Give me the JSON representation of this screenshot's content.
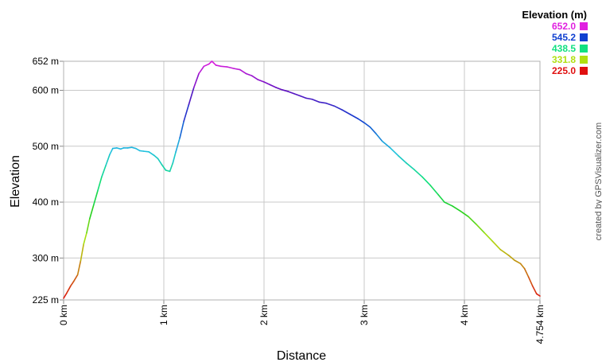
{
  "chart_data": {
    "type": "line",
    "xlabel": "Distance",
    "ylabel": "Elevation",
    "x_unit": "km",
    "y_unit": "m",
    "xlim": [
      0,
      4.754
    ],
    "ylim": [
      225,
      652
    ],
    "grid": true,
    "x_ticks": [
      {
        "value": 0,
        "label": "0 km"
      },
      {
        "value": 1,
        "label": "1 km"
      },
      {
        "value": 2,
        "label": "2 km"
      },
      {
        "value": 3,
        "label": "3 km"
      },
      {
        "value": 4,
        "label": "4 km"
      },
      {
        "value": 4.754,
        "label": "4.754 km"
      }
    ],
    "y_ticks": [
      {
        "value": 225,
        "label": "225 m"
      },
      {
        "value": 300,
        "label": "300 m"
      },
      {
        "value": 400,
        "label": "400 m"
      },
      {
        "value": 500,
        "label": "500 m"
      },
      {
        "value": 600,
        "label": "600 m"
      },
      {
        "value": 652,
        "label": "652 m"
      }
    ],
    "legend": {
      "title": "Elevation (m)",
      "placement": "top-right",
      "entries": [
        {
          "label": "652.0",
          "color": "#e020e0"
        },
        {
          "label": "545.2",
          "color": "#1040d0"
        },
        {
          "label": "438.5",
          "color": "#10e080"
        },
        {
          "label": "331.8",
          "color": "#b0e010"
        },
        {
          "label": "225.0",
          "color": "#e01010"
        }
      ]
    },
    "color_stops": [
      {
        "value": 225.0,
        "color": "#e01010"
      },
      {
        "value": 331.8,
        "color": "#b0e010"
      },
      {
        "value": 385.0,
        "color": "#20d020"
      },
      {
        "value": 438.5,
        "color": "#10e080"
      },
      {
        "value": 492.0,
        "color": "#20c0e0"
      },
      {
        "value": 545.2,
        "color": "#1040d0"
      },
      {
        "value": 600.0,
        "color": "#6010c0"
      },
      {
        "value": 652.0,
        "color": "#e020e0"
      }
    ],
    "series": [
      {
        "points": [
          [
            0,
            228
          ],
          [
            0.03,
            237
          ],
          [
            0.07,
            250
          ],
          [
            0.1,
            258
          ],
          [
            0.14,
            270
          ],
          [
            0.17,
            295
          ],
          [
            0.2,
            325
          ],
          [
            0.23,
            345
          ],
          [
            0.26,
            370
          ],
          [
            0.3,
            395
          ],
          [
            0.34,
            420
          ],
          [
            0.38,
            445
          ],
          [
            0.42,
            465
          ],
          [
            0.46,
            485
          ],
          [
            0.49,
            496
          ],
          [
            0.53,
            497
          ],
          [
            0.57,
            495
          ],
          [
            0.6,
            497
          ],
          [
            0.64,
            497
          ],
          [
            0.68,
            498
          ],
          [
            0.72,
            496
          ],
          [
            0.76,
            492
          ],
          [
            0.8,
            491
          ],
          [
            0.85,
            490
          ],
          [
            0.9,
            484
          ],
          [
            0.94,
            478
          ],
          [
            0.98,
            467
          ],
          [
            1.02,
            457
          ],
          [
            1.06,
            455
          ],
          [
            1.09,
            470
          ],
          [
            1.12,
            490
          ],
          [
            1.16,
            515
          ],
          [
            1.2,
            545
          ],
          [
            1.25,
            575
          ],
          [
            1.3,
            605
          ],
          [
            1.35,
            630
          ],
          [
            1.4,
            643
          ],
          [
            1.45,
            647
          ],
          [
            1.48,
            652
          ],
          [
            1.52,
            645
          ],
          [
            1.57,
            643
          ],
          [
            1.63,
            642
          ],
          [
            1.7,
            639
          ],
          [
            1.76,
            637
          ],
          [
            1.82,
            630
          ],
          [
            1.88,
            626
          ],
          [
            1.94,
            619
          ],
          [
            2.0,
            615
          ],
          [
            2.06,
            610
          ],
          [
            2.12,
            605
          ],
          [
            2.18,
            601
          ],
          [
            2.24,
            598
          ],
          [
            2.3,
            594
          ],
          [
            2.36,
            590
          ],
          [
            2.42,
            586
          ],
          [
            2.48,
            584
          ],
          [
            2.55,
            579
          ],
          [
            2.62,
            577
          ],
          [
            2.7,
            572
          ],
          [
            2.78,
            565
          ],
          [
            2.86,
            557
          ],
          [
            2.94,
            549
          ],
          [
            3.0,
            542
          ],
          [
            3.06,
            534
          ],
          [
            3.12,
            522
          ],
          [
            3.18,
            509
          ],
          [
            3.26,
            497
          ],
          [
            3.34,
            483
          ],
          [
            3.42,
            470
          ],
          [
            3.5,
            458
          ],
          [
            3.58,
            445
          ],
          [
            3.66,
            430
          ],
          [
            3.74,
            413
          ],
          [
            3.8,
            400
          ],
          [
            3.88,
            393
          ],
          [
            3.96,
            384
          ],
          [
            4.04,
            374
          ],
          [
            4.12,
            360
          ],
          [
            4.2,
            345
          ],
          [
            4.28,
            330
          ],
          [
            4.36,
            315
          ],
          [
            4.44,
            305
          ],
          [
            4.5,
            296
          ],
          [
            4.56,
            290
          ],
          [
            4.6,
            281
          ],
          [
            4.64,
            266
          ],
          [
            4.68,
            250
          ],
          [
            4.72,
            236
          ],
          [
            4.754,
            232
          ]
        ]
      }
    ]
  },
  "credit": "created by GPSVisualizer.com"
}
